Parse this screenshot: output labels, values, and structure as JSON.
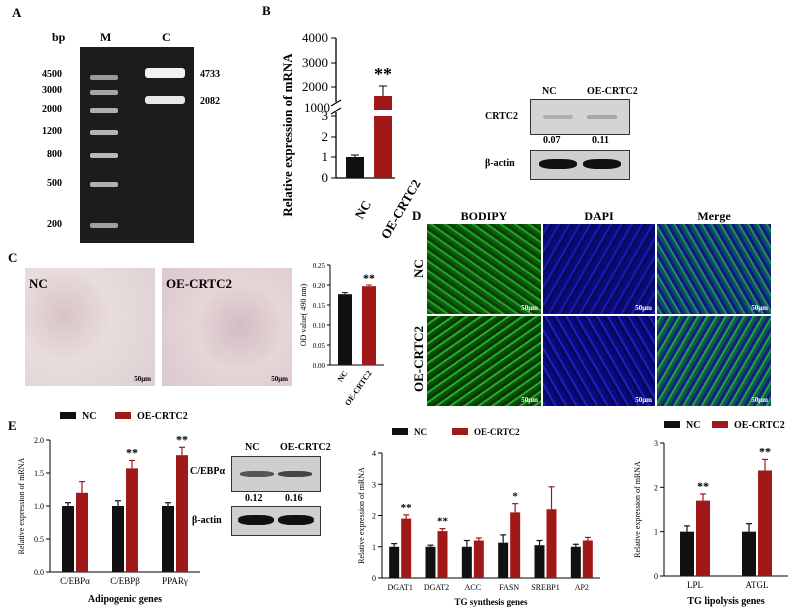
{
  "panels": {
    "A": {
      "label": "A",
      "header_bp": "bp",
      "header_m": "M",
      "header_c": "C",
      "ladder": [
        "4500",
        "3000",
        "2000",
        "1200",
        "800",
        "500",
        "200"
      ],
      "bands": [
        "4733",
        "2082"
      ]
    },
    "B": {
      "label": "B",
      "ylabel": "Relative expression of  mRNA",
      "ticks_top": [
        "4000",
        "3000",
        "2000",
        "1000"
      ],
      "ticks_bottom": [
        "3",
        "2",
        "1",
        "0"
      ],
      "significance": "**",
      "blot_cols": [
        "NC",
        "OE-CRTC2"
      ],
      "blot_rows": [
        "CRTC2",
        "β-actin"
      ],
      "ratios": [
        "0.07",
        "0.11"
      ]
    },
    "C": {
      "label": "C",
      "image_labels": [
        "NC",
        "OE-CRTC2"
      ],
      "scale": "50μm",
      "ylabel": "OD value(  490 nm)",
      "significance": "**"
    },
    "D": {
      "label": "D",
      "cols": [
        "BODIPY",
        "DAPI",
        "Merge"
      ],
      "rows": [
        "NC",
        "OE-CRTC2"
      ],
      "scale": "50μm"
    },
    "E": {
      "label": "E",
      "legend": [
        "NC",
        "OE-CRTC2"
      ],
      "adipo_ylabel": "Relative expression of  mRNA",
      "adipo_xtitle": "Adipogenic genes",
      "blot_cols": [
        "NC",
        "OE-CRTC2"
      ],
      "blot_rows": [
        "C/EBPα",
        "β-actin"
      ],
      "ratios": [
        "0.12",
        "0.16"
      ],
      "tg_ylabel": "Relative expression of mRNA",
      "tg_xtitle": "TG synthesis genes",
      "lip_ylabel": "Relative expression of  mRNA",
      "lip_xtitle": "TG lipolysis genes"
    }
  },
  "colors": {
    "nc": "#111111",
    "oe": "#a01818"
  },
  "chart_data": [
    {
      "id": "B-mrna",
      "type": "bar",
      "categories": [
        "NC",
        "OE-CRTC2"
      ],
      "values": [
        1,
        1700
      ],
      "errors": [
        0.05,
        300
      ],
      "ylabel": "Relative expression of  mRNA",
      "axis_break": [
        3,
        1000
      ],
      "significance": [
        "",
        "**"
      ]
    },
    {
      "id": "C-od",
      "type": "bar",
      "categories": [
        "NC",
        "OE-CRTC2"
      ],
      "values": [
        0.177,
        0.197
      ],
      "errors": [
        0.004,
        0.003
      ],
      "ylim": [
        0,
        0.25
      ],
      "yticks": [
        "0.00",
        "0.05",
        "0.10",
        "0.15",
        "0.20",
        "0.25"
      ],
      "ylabel": "OD value(  490 nm)",
      "significance": [
        "",
        "**"
      ]
    },
    {
      "id": "E-adipogenic",
      "type": "bar",
      "categories": [
        "C/EBPα",
        "C/EBPβ",
        "PPARγ"
      ],
      "series": [
        {
          "name": "NC",
          "values": [
            1.0,
            1.0,
            1.0
          ],
          "errors": [
            0.05,
            0.08,
            0.05
          ]
        },
        {
          "name": "OE-CRTC2",
          "values": [
            1.2,
            1.57,
            1.77
          ],
          "errors": [
            0.17,
            0.12,
            0.12
          ]
        }
      ],
      "ylim": [
        0,
        2.0
      ],
      "yticks": [
        "0.0",
        "0.5",
        "1.0",
        "1.5",
        "2.0"
      ],
      "ylabel": "Relative expression of  mRNA",
      "xlabel": "Adipogenic genes",
      "significance": [
        "",
        "**",
        "**"
      ]
    },
    {
      "id": "E-tg-synthesis",
      "type": "bar",
      "categories": [
        "DGAT1",
        "DGAT2",
        "ACC",
        "FASN",
        "SREBP1",
        "AP2"
      ],
      "series": [
        {
          "name": "NC",
          "values": [
            1.0,
            1.0,
            1.0,
            1.13,
            1.05,
            1.0
          ],
          "errors": [
            0.1,
            0.05,
            0.2,
            0.25,
            0.15,
            0.08
          ]
        },
        {
          "name": "OE-CRTC2",
          "values": [
            1.9,
            1.5,
            1.2,
            2.1,
            2.2,
            1.2
          ],
          "errors": [
            0.12,
            0.08,
            0.08,
            0.28,
            0.72,
            0.1
          ]
        }
      ],
      "ylim": [
        0,
        4
      ],
      "yticks": [
        "0",
        "1",
        "2",
        "3",
        "4"
      ],
      "ylabel": "Relative expression of mRNA",
      "xlabel": "TG synthesis genes",
      "significance": [
        "**",
        "**",
        "",
        "*",
        "",
        ""
      ]
    },
    {
      "id": "E-tg-lipolysis",
      "type": "bar",
      "categories": [
        "LPL",
        "ATGL"
      ],
      "series": [
        {
          "name": "NC",
          "values": [
            1.0,
            1.0
          ],
          "errors": [
            0.13,
            0.18
          ]
        },
        {
          "name": "OE-CRTC2",
          "values": [
            1.7,
            2.38
          ],
          "errors": [
            0.15,
            0.25
          ]
        }
      ],
      "ylim": [
        0,
        3
      ],
      "yticks": [
        "0",
        "1",
        "2",
        "3"
      ],
      "ylabel": "Relative expression of  mRNA",
      "xlabel": "TG lipolysis genes",
      "significance": [
        "**",
        "**"
      ]
    }
  ]
}
